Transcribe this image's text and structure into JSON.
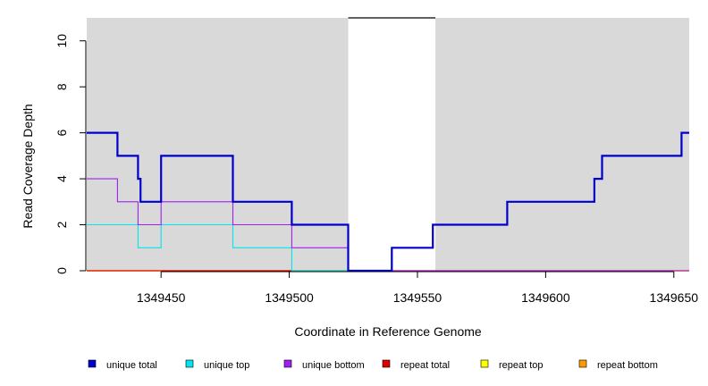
{
  "chart_data": {
    "type": "line",
    "step": true,
    "xlabel": "Coordinate in Reference Genome",
    "ylabel": "Read Coverage Depth",
    "xlim": [
      1349421,
      1349656
    ],
    "ylim": [
      0,
      11
    ],
    "x_ticks": [
      1349450,
      1349500,
      1349550,
      1349600,
      1349650
    ],
    "y_ticks": [
      0,
      2,
      4,
      6,
      8,
      10
    ],
    "background": "#d9d9d9",
    "unshaded_region": [
      1349523,
      1349557
    ],
    "legend_position": "bottom",
    "series": [
      {
        "name": "unique total",
        "color": "#0000cd",
        "points": [
          [
            1349421,
            6
          ],
          [
            1349433,
            6
          ],
          [
            1349433,
            5
          ],
          [
            1349441,
            5
          ],
          [
            1349441,
            4
          ],
          [
            1349442,
            4
          ],
          [
            1349442,
            3
          ],
          [
            1349450,
            3
          ],
          [
            1349450,
            5
          ],
          [
            1349478,
            5
          ],
          [
            1349478,
            3
          ],
          [
            1349501,
            3
          ],
          [
            1349501,
            2
          ],
          [
            1349523,
            2
          ],
          [
            1349523,
            0
          ],
          [
            1349540,
            0
          ],
          [
            1349540,
            1
          ],
          [
            1349556,
            1
          ],
          [
            1349556,
            2
          ],
          [
            1349585,
            2
          ],
          [
            1349585,
            3
          ],
          [
            1349619,
            3
          ],
          [
            1349619,
            4
          ],
          [
            1349622,
            4
          ],
          [
            1349622,
            5
          ],
          [
            1349653,
            5
          ],
          [
            1349653,
            6
          ],
          [
            1349656,
            6
          ]
        ]
      },
      {
        "name": "unique top",
        "color": "#00e5ee",
        "points": [
          [
            1349421,
            2
          ],
          [
            1349441,
            2
          ],
          [
            1349441,
            1
          ],
          [
            1349450,
            1
          ],
          [
            1349450,
            2
          ],
          [
            1349478,
            2
          ],
          [
            1349478,
            1
          ],
          [
            1349501,
            1
          ],
          [
            1349501,
            0
          ],
          [
            1349540,
            0
          ],
          [
            1349540,
            1
          ],
          [
            1349556,
            1
          ],
          [
            1349556,
            2
          ],
          [
            1349585,
            2
          ],
          [
            1349585,
            3
          ],
          [
            1349619,
            3
          ],
          [
            1349619,
            4
          ],
          [
            1349622,
            4
          ],
          [
            1349622,
            5
          ],
          [
            1349653,
            5
          ],
          [
            1349653,
            6
          ],
          [
            1349656,
            6
          ]
        ]
      },
      {
        "name": "unique bottom",
        "color": "#a020f0",
        "points": [
          [
            1349421,
            4
          ],
          [
            1349433,
            4
          ],
          [
            1349433,
            3
          ],
          [
            1349441,
            3
          ],
          [
            1349441,
            2
          ],
          [
            1349450,
            2
          ],
          [
            1349450,
            3
          ],
          [
            1349478,
            3
          ],
          [
            1349478,
            2
          ],
          [
            1349501,
            2
          ],
          [
            1349501,
            1
          ],
          [
            1349523,
            1
          ],
          [
            1349523,
            0
          ],
          [
            1349656,
            0
          ]
        ]
      },
      {
        "name": "repeat total",
        "color": "#dd0000",
        "points": [
          [
            1349421,
            0
          ],
          [
            1349656,
            0
          ]
        ]
      },
      {
        "name": "repeat top",
        "color": "#ffff00",
        "points": [
          [
            1349421,
            0
          ],
          [
            1349656,
            0
          ]
        ]
      },
      {
        "name": "repeat bottom",
        "color": "#ff9900",
        "points": [
          [
            1349421,
            0
          ],
          [
            1349656,
            0
          ]
        ]
      }
    ]
  }
}
